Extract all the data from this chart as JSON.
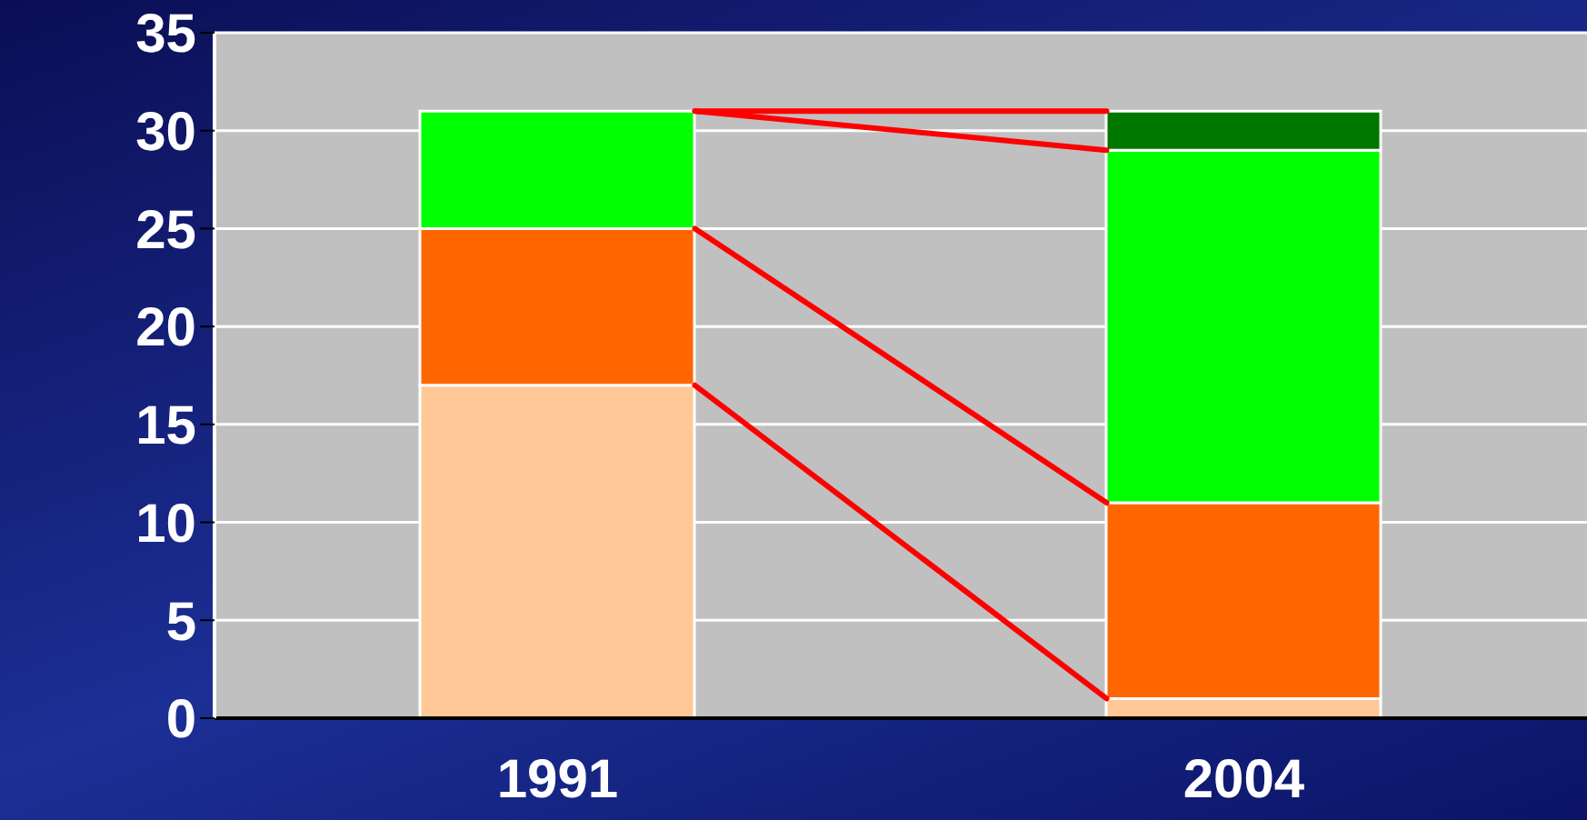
{
  "chart_data": {
    "type": "bar",
    "stacked": true,
    "categories": [
      "1991",
      "2004"
    ],
    "series": [
      {
        "color": "#ffc896",
        "values": [
          17,
          1
        ]
      },
      {
        "color": "#ff6600",
        "values": [
          8,
          10
        ]
      },
      {
        "color": "#00ff00",
        "values": [
          6,
          18
        ]
      },
      {
        "color": "#007800",
        "values": [
          null,
          2
        ]
      }
    ],
    "ylim": [
      0,
      35
    ],
    "yticks": [
      0,
      5,
      10,
      15,
      20,
      25,
      30,
      35
    ],
    "grid": "y",
    "legend": false
  }
}
